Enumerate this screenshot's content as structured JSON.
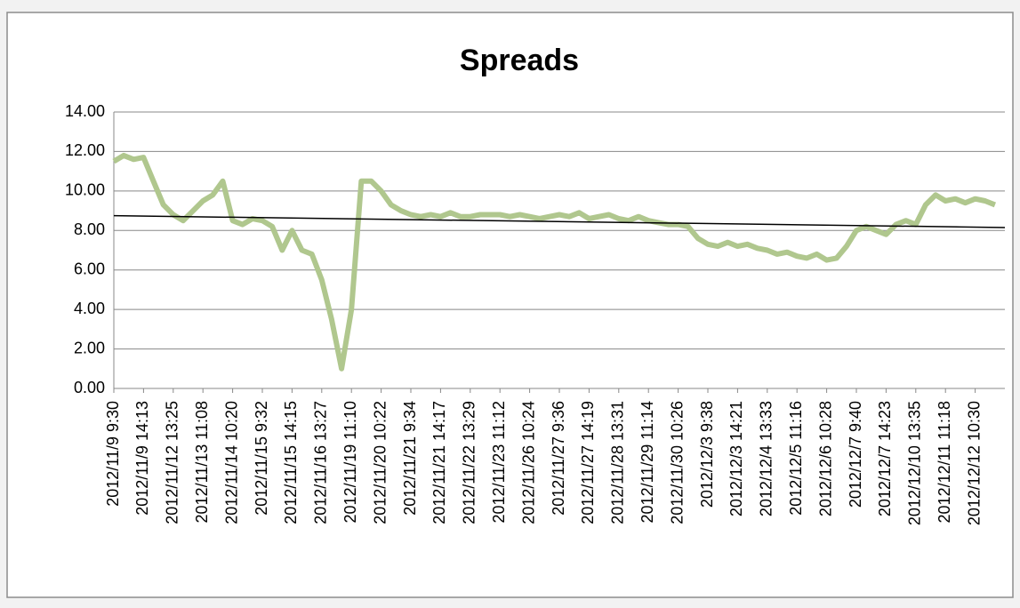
{
  "chart_data": {
    "type": "line",
    "title": "Spreads",
    "categories": [
      "2012/11/9 9:30",
      null,
      null,
      "2012/11/9 14:13",
      null,
      null,
      "2012/11/12 13:25",
      null,
      null,
      "2012/11/13 11:08",
      null,
      null,
      "2012/11/14 10:20",
      null,
      null,
      "2012/11/15 9:32",
      null,
      null,
      "2012/11/15 14:15",
      null,
      null,
      "2012/11/16 13:27",
      null,
      null,
      "2012/11/19 11:10",
      null,
      null,
      "2012/11/20 10:22",
      null,
      null,
      "2012/11/21 9:34",
      null,
      null,
      "2012/11/21 14:17",
      null,
      null,
      "2012/11/22 13:29",
      null,
      null,
      "2012/11/23 11:12",
      null,
      null,
      "2012/11/26 10:24",
      null,
      null,
      "2012/11/27 9:36",
      null,
      null,
      "2012/11/27 14:19",
      null,
      null,
      "2012/11/28 13:31",
      null,
      null,
      "2012/11/29 11:14",
      null,
      null,
      "2012/11/30 10:26",
      null,
      null,
      "2012/12/3 9:38",
      null,
      null,
      "2012/12/3 14:21",
      null,
      null,
      "2012/12/4 13:33",
      null,
      null,
      "2012/12/5 11:16",
      null,
      null,
      "2012/12/6 10:28",
      null,
      null,
      "2012/12/7 9:40",
      null,
      null,
      "2012/12/7 14:23",
      null,
      null,
      "2012/12/10 13:35",
      null,
      null,
      "2012/12/11 11:18",
      null,
      null,
      "2012/12/12 10:30",
      null,
      null
    ],
    "series": [
      {
        "color": "#b0c78e",
        "values": [
          11.5,
          11.8,
          11.6,
          11.7,
          10.5,
          9.3,
          8.8,
          8.5,
          9.0,
          9.5,
          9.8,
          10.5,
          8.5,
          8.3,
          8.6,
          8.5,
          8.2,
          7.0,
          8.0,
          7.0,
          6.8,
          5.5,
          3.5,
          1.0,
          4.0,
          10.5,
          10.5,
          10.0,
          9.3,
          9.0,
          8.8,
          8.7,
          8.8,
          8.7,
          8.9,
          8.7,
          8.7,
          8.8,
          8.8,
          8.8,
          8.7,
          8.8,
          8.7,
          8.6,
          8.7,
          8.8,
          8.7,
          8.9,
          8.6,
          8.7,
          8.8,
          8.6,
          8.5,
          8.7,
          8.5,
          8.4,
          8.3,
          8.3,
          8.2,
          7.6,
          7.3,
          7.2,
          7.4,
          7.2,
          7.3,
          7.1,
          7.0,
          6.8,
          6.9,
          6.7,
          6.6,
          6.8,
          6.5,
          6.6,
          7.2,
          8.0,
          8.2,
          8.0,
          7.8,
          8.3,
          8.5,
          8.3,
          9.3,
          9.8,
          9.5,
          9.6,
          9.4,
          9.6,
          9.5,
          9.3
        ]
      }
    ],
    "trendline": {
      "start": 8.75,
      "end": 8.15,
      "color": "#000000"
    },
    "ylim": [
      0,
      14
    ],
    "yticks": [
      {
        "value": 0,
        "label": "0.00"
      },
      {
        "value": 2,
        "label": "2.00"
      },
      {
        "value": 4,
        "label": "4.00"
      },
      {
        "value": 6,
        "label": "6.00"
      },
      {
        "value": 8,
        "label": "8.00"
      },
      {
        "value": 10,
        "label": "10.00"
      },
      {
        "value": 12,
        "label": "12.00"
      },
      {
        "value": 14,
        "label": "14.00"
      }
    ],
    "grid": true
  }
}
